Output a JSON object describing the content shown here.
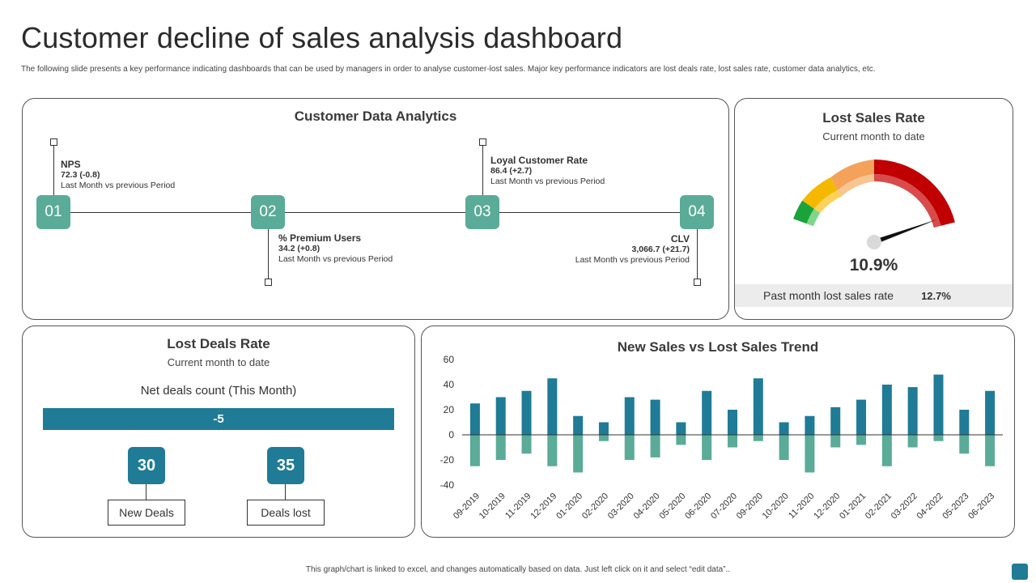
{
  "header": {
    "title": "Customer decline of sales analysis dashboard",
    "subtitle": "The following slide presents a key performance indicating dashboards that can be used by managers in  order to analyse customer-lost sales. Major key performance indicators are lost deals rate, lost sales rate, customer data analytics, etc."
  },
  "customer_data_analytics": {
    "title": "Customer Data Analytics",
    "nodes": [
      "01",
      "02",
      "03",
      "04"
    ],
    "kpis": [
      {
        "name": "NPS",
        "value": "72.3 (-0.8)",
        "note": "Last Month  vs previous Period"
      },
      {
        "name": "% Premium Users",
        "value": "34.2 (+0.8)",
        "note": "Last Month  vs previous Period"
      },
      {
        "name": "Loyal Customer Rate",
        "value": "86.4 (+2.7)",
        "note": "Last Month  vs previous Period"
      },
      {
        "name": "CLV",
        "value": "3,066.7 (+21.7)",
        "note": "Last Month  vs previous Period"
      }
    ]
  },
  "lost_sales_rate": {
    "title": "Lost Sales Rate",
    "subtitle": "Current  month to date",
    "value": "10.9%",
    "footer_label": "Past month lost sales rate",
    "footer_value": "12.7%",
    "colors": {
      "green": "#1aa33a",
      "yellow": "#f5b800",
      "orange": "#f4a259",
      "red": "#c00000"
    }
  },
  "lost_deals_rate": {
    "title": "Lost Deals Rate",
    "subtitle": "Current  month to date",
    "net_label": "Net deals count (This Month)",
    "net_value": "-5",
    "new_deals_value": "30",
    "new_deals_label": "New Deals",
    "deals_lost_value": "35",
    "deals_lost_label": "Deals lost"
  },
  "chart_data": {
    "type": "bar",
    "title": "New Sales vs Lost Sales Trend",
    "categories": [
      "09-2019",
      "10-2019",
      "11-2019",
      "12-2019",
      "01-2020",
      "02-2020",
      "03-2020",
      "04-2020",
      "05-2020",
      "06-2020",
      "07-2020",
      "09-2020",
      "10-2020",
      "11-2020",
      "12-2020",
      "01-2021",
      "02-2021",
      "03-2022",
      "04-2022",
      "05-2023",
      "06-2023"
    ],
    "series": [
      {
        "name": "New Sales",
        "color": "#1f7b96",
        "values": [
          25,
          30,
          35,
          45,
          15,
          10,
          30,
          28,
          10,
          35,
          20,
          45,
          10,
          15,
          22,
          28,
          40,
          38,
          48,
          20,
          35
        ]
      },
      {
        "name": "Lost Sales",
        "color": "#5aab97",
        "values": [
          -25,
          -20,
          -15,
          -25,
          -30,
          -5,
          -20,
          -18,
          -8,
          -20,
          -10,
          -5,
          -20,
          -30,
          -10,
          -8,
          -25,
          -10,
          -5,
          -15,
          -25
        ]
      }
    ],
    "yticks": [
      "60",
      "40",
      "20",
      "0",
      "-20",
      "-40"
    ],
    "ylim": [
      -40,
      60
    ],
    "xlabel": "",
    "ylabel": ""
  },
  "footer": {
    "note": "This graph/chart is linked to excel, and changes automatically based on data. Just left click on it and select “edit data”.."
  }
}
